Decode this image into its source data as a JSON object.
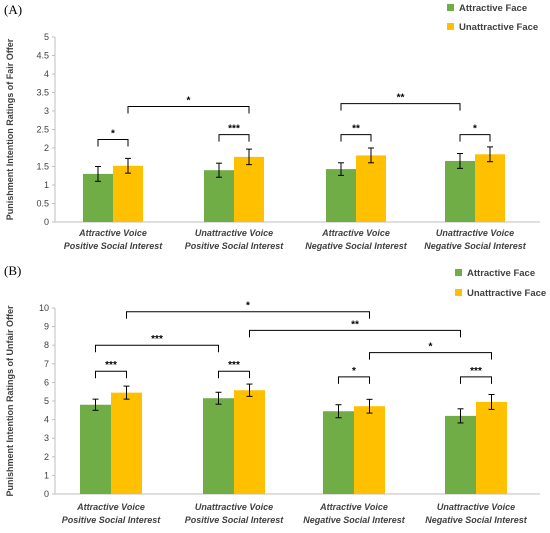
{
  "chart_data": [
    {
      "type": "bar",
      "panel_label": "(A)",
      "ylabel": "Punishment Intention Ratings of Fair Offer",
      "ylim": [
        0,
        5
      ],
      "yticks": [
        "0",
        "0.5",
        "1",
        "1.5",
        "2",
        "2.5",
        "3",
        "3.5",
        "4",
        "4.5",
        "5"
      ],
      "ytick_values": [
        0,
        0.5,
        1,
        1.5,
        2,
        2.5,
        3,
        3.5,
        4,
        4.5,
        5
      ],
      "categories": [
        [
          "Attractive Voice",
          "Positive Social Interest"
        ],
        [
          "Unattractive Voice",
          "Positive Social Interest"
        ],
        [
          "Attractive Voice",
          "Negative Social Interest"
        ],
        [
          "Unattractive Voice",
          "Negative Social Interest"
        ]
      ],
      "series": [
        {
          "name": "Attractive Face",
          "color": "#70ad47",
          "values": [
            1.3,
            1.4,
            1.43,
            1.65
          ],
          "errors": [
            0.2,
            0.19,
            0.17,
            0.2
          ]
        },
        {
          "name": "Unattractive Face",
          "color": "#ffc000",
          "values": [
            1.52,
            1.76,
            1.8,
            1.83
          ],
          "errors": [
            0.2,
            0.21,
            0.2,
            0.2
          ]
        }
      ],
      "legend": "top-right",
      "grid": false,
      "significance": [
        {
          "from": [
            0,
            0
          ],
          "to": [
            0,
            1
          ],
          "label": "*",
          "level": 2.23
        },
        {
          "from": [
            0,
            1
          ],
          "to": [
            1,
            1
          ],
          "label": "*",
          "level": 3.12
        },
        {
          "from": [
            1,
            0
          ],
          "to": [
            1,
            1
          ],
          "label": "***",
          "level": 2.36
        },
        {
          "from": [
            2,
            0
          ],
          "to": [
            2,
            1
          ],
          "label": "**",
          "level": 2.36
        },
        {
          "from": [
            2,
            0
          ],
          "to": [
            3,
            0
          ],
          "label": "**",
          "level": 3.2
        },
        {
          "from": [
            3,
            0
          ],
          "to": [
            3,
            1
          ],
          "label": "*",
          "level": 2.36
        }
      ]
    },
    {
      "type": "bar",
      "panel_label": "(B)",
      "ylabel": "Punishment Intention Ratings of Unfair Offer",
      "ylim": [
        0,
        10
      ],
      "yticks": [
        "0",
        "1",
        "2",
        "3",
        "4",
        "5",
        "6",
        "7",
        "8",
        "9",
        "10"
      ],
      "ytick_values": [
        0,
        1,
        2,
        3,
        4,
        5,
        6,
        7,
        8,
        9,
        10
      ],
      "categories": [
        [
          "Attractive Voice",
          "Positive Social Interest"
        ],
        [
          "Unattractive Voice",
          "Positive Social Interest"
        ],
        [
          "Attractive Voice",
          "Negative Social Interest"
        ],
        [
          "Unattractive Voice",
          "Negative Social Interest"
        ]
      ],
      "series": [
        {
          "name": "Attractive Face",
          "color": "#70ad47",
          "values": [
            4.8,
            5.15,
            4.45,
            4.2
          ],
          "errors": [
            0.3,
            0.32,
            0.35,
            0.38
          ]
        },
        {
          "name": "Unattractive Face",
          "color": "#ffc000",
          "values": [
            5.45,
            5.58,
            4.72,
            4.95
          ],
          "errors": [
            0.35,
            0.33,
            0.37,
            0.4
          ]
        }
      ],
      "legend": "top-right",
      "grid": false,
      "significance": [
        {
          "from": [
            0,
            0
          ],
          "to": [
            0,
            1
          ],
          "label": "***",
          "level": 6.6
        },
        {
          "from": [
            0,
            0
          ],
          "to": [
            1,
            0
          ],
          "label": "***",
          "level": 8.0
        },
        {
          "from": [
            0,
            1
          ],
          "to": [
            2,
            1
          ],
          "label": "*",
          "level": 9.8
        },
        {
          "from": [
            1,
            0
          ],
          "to": [
            1,
            1
          ],
          "label": "***",
          "level": 6.6
        },
        {
          "from": [
            1,
            1
          ],
          "to": [
            3,
            0
          ],
          "label": "**",
          "level": 8.8
        },
        {
          "from": [
            2,
            0
          ],
          "to": [
            2,
            1
          ],
          "label": "*",
          "level": 6.3
        },
        {
          "from": [
            2,
            1
          ],
          "to": [
            3,
            1
          ],
          "label": "*",
          "level": 7.6
        },
        {
          "from": [
            3,
            0
          ],
          "to": [
            3,
            1
          ],
          "label": "***",
          "level": 6.3
        }
      ]
    }
  ]
}
